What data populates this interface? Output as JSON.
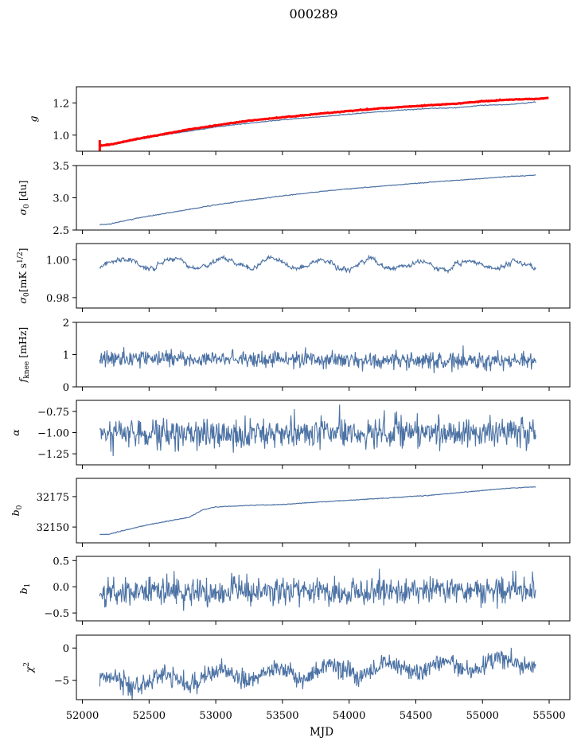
{
  "chart_data": {
    "type": "line",
    "title": "000289",
    "xlabel": "MJD",
    "xlim": [
      51955,
      55655
    ],
    "xticks": [
      52000,
      52500,
      53000,
      53500,
      54000,
      54500,
      55000,
      55500
    ],
    "x_range": [
      52130,
      55400
    ],
    "line_color": "#4c72a4",
    "fit_color": "#ff0000",
    "panels": [
      {
        "id": "g",
        "ylabel": "g",
        "ylim": [
          0.9,
          1.3
        ],
        "yticks": [
          1.0,
          1.2
        ],
        "ytick_labels": [
          "1.0",
          "1.2"
        ],
        "kind": "smooth",
        "series": [
          {
            "name": "g",
            "color": "#4c72a4",
            "x": [
              52130,
              52200,
              52400,
              52600,
              52800,
              53000,
              53200,
              53500,
              53800,
              54000,
              54300,
              54600,
              54800,
              55000,
              55200,
              55400
            ],
            "y": [
              0.93,
              0.935,
              0.97,
              1.0,
              1.025,
              1.05,
              1.07,
              1.095,
              1.115,
              1.13,
              1.15,
              1.165,
              1.17,
              1.185,
              1.19,
              1.205
            ]
          },
          {
            "name": "g fit",
            "color": "#ff0000",
            "x": [
              52130,
              52200,
              52400,
              52600,
              52800,
              53000,
              53200,
              53500,
              53800,
              54000,
              54300,
              54600,
              54800,
              55000,
              55200,
              55400,
              55500
            ],
            "y": [
              0.935,
              0.94,
              0.975,
              1.005,
              1.035,
              1.06,
              1.085,
              1.11,
              1.135,
              1.15,
              1.17,
              1.185,
              1.195,
              1.21,
              1.22,
              1.225,
              1.23
            ]
          }
        ]
      },
      {
        "id": "sigma0_du",
        "ylabel": "σ0 [du]",
        "ylim": [
          2.5,
          3.5
        ],
        "yticks": [
          2.5,
          3.0,
          3.5
        ],
        "ytick_labels": [
          "2.5",
          "3.0",
          "3.5"
        ],
        "kind": "smooth",
        "series": [
          {
            "name": "sigma0",
            "color": "#4c72a4",
            "x": [
              52130,
              52200,
              52400,
              52600,
              52800,
              53000,
              53200,
              53500,
              53800,
              54000,
              54300,
              54600,
              54800,
              55000,
              55200,
              55400
            ],
            "y": [
              2.58,
              2.59,
              2.68,
              2.75,
              2.82,
              2.89,
              2.95,
              3.03,
              3.1,
              3.14,
              3.19,
              3.24,
              3.27,
              3.3,
              3.33,
              3.35
            ]
          }
        ]
      },
      {
        "id": "sigma0_mK",
        "ylabel": "σ0[mK s^1/2]",
        "ylim": [
          0.9745,
          1.0085
        ],
        "yticks": [
          0.98,
          1.0
        ],
        "ytick_labels": [
          "0.98",
          "1.00"
        ],
        "kind": "wavy",
        "base": [
          0.9985,
          0.997
        ],
        "amp": 0.0025,
        "period": 370,
        "noise": 0.0012,
        "seed": 3
      },
      {
        "id": "fknee",
        "ylabel": "f_knee [mHz]",
        "ylim": [
          0,
          2
        ],
        "yticks": [
          0,
          1,
          2
        ],
        "ytick_labels": [
          "0",
          "1",
          "2"
        ],
        "kind": "noise",
        "base": [
          0.9,
          0.78
        ],
        "noise": 0.13,
        "seed": 7
      },
      {
        "id": "alpha",
        "ylabel": "α",
        "ylim": [
          -1.38,
          -0.62
        ],
        "yticks": [
          -1.25,
          -1.0,
          -0.75
        ],
        "ytick_labels": [
          "−1.25",
          "−1.00",
          "−0.75"
        ],
        "kind": "noise",
        "base": [
          -1.02,
          -1.0
        ],
        "noise": 0.09,
        "seed": 11
      },
      {
        "id": "b0",
        "ylabel": "b0",
        "ylim": [
          32137,
          32190
        ],
        "yticks": [
          32150,
          32175
        ],
        "ytick_labels": [
          "32150",
          "32175"
        ],
        "kind": "smooth",
        "series": [
          {
            "name": "b0",
            "color": "#4c72a4",
            "x": [
              52130,
              52200,
              52300,
              52500,
              52700,
              52800,
              52900,
              53000,
              53100,
              53300,
              53500,
              53700,
              54000,
              54300,
              54600,
              54900,
              55200,
              55400
            ],
            "y": [
              32144,
              32144,
              32147,
              32152,
              32156,
              32158,
              32164,
              32166.5,
              32167,
              32168,
              32168.5,
              32170,
              32172,
              32174,
              32176,
              32179,
              32182,
              32183
            ]
          }
        ]
      },
      {
        "id": "b1",
        "ylabel": "b1",
        "ylim": [
          -0.65,
          0.58
        ],
        "yticks": [
          -0.5,
          0.0,
          0.5
        ],
        "ytick_labels": [
          "−0.5",
          "0.0",
          "0.5"
        ],
        "kind": "noise",
        "base": [
          -0.12,
          -0.05
        ],
        "noise": 0.14,
        "seed": 19
      },
      {
        "id": "chi2",
        "ylabel": "χ²",
        "ylim": [
          -8,
          2
        ],
        "yticks": [
          -5,
          0
        ],
        "ytick_labels": [
          "−5",
          "0"
        ],
        "kind": "noise",
        "base": [
          -5.3,
          -2.2
        ],
        "noise": 0.75,
        "seed": 23
      }
    ]
  }
}
